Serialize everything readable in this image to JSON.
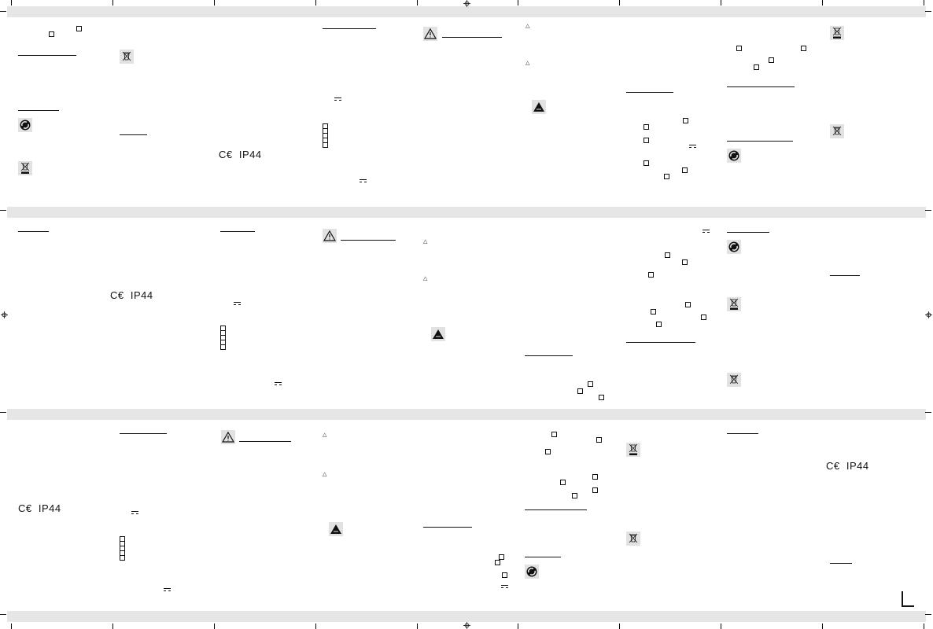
{
  "document": {
    "certification_marks": {
      "ce": "C€",
      "ip_rating": "IP44"
    },
    "colors": {
      "band": "#e6e6e6",
      "ink": "#111111"
    },
    "icons": [
      "recycling-green-dot-icon",
      "weee-crossed-bin-icon",
      "weee-crossed-bin-bar-icon",
      "warning-triangle-icon",
      "dc-current-symbol-icon",
      "registration-mark-icon"
    ]
  }
}
